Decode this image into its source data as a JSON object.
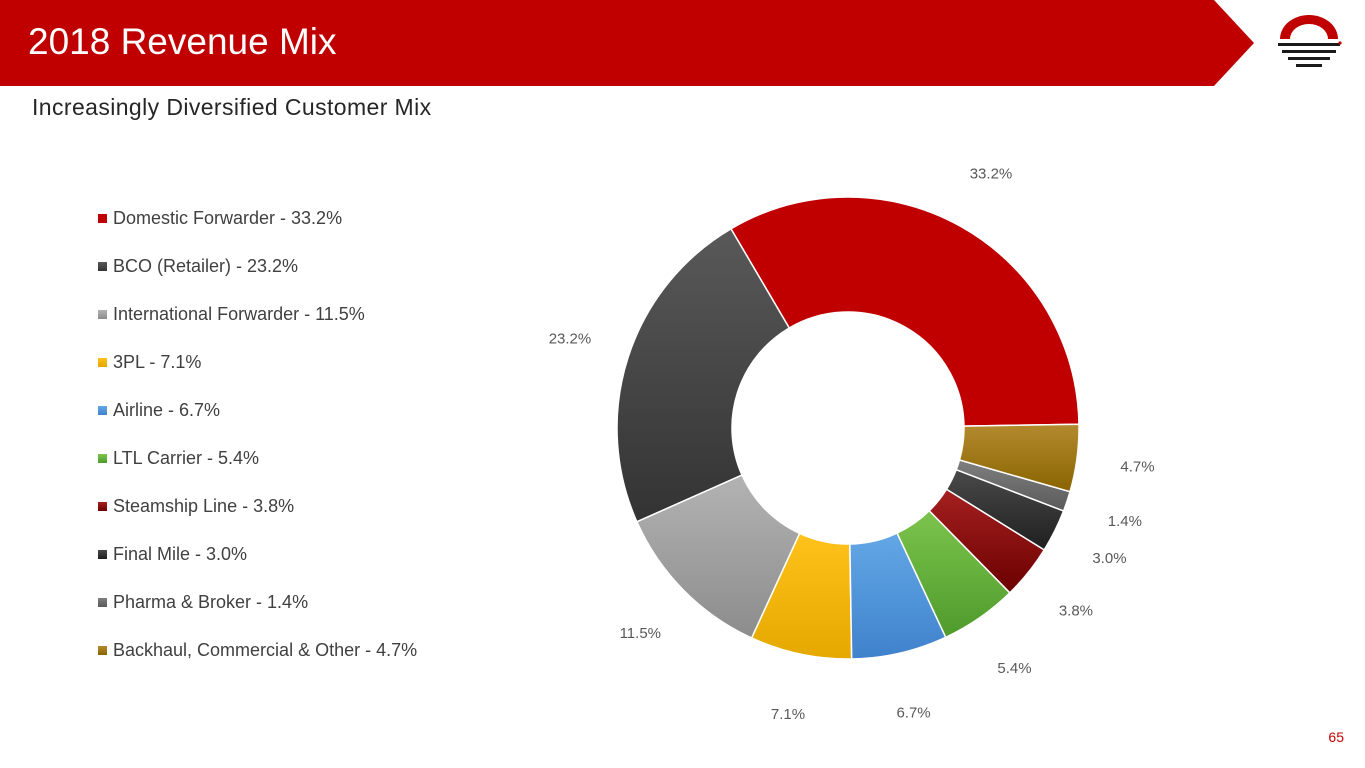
{
  "header": {
    "title": "2018 Revenue Mix",
    "subtitle": "Increasingly Diversified Customer Mix",
    "brand_color": "#c00000",
    "logo_icon": "horizon-sun-logo-icon"
  },
  "footer": {
    "page_number": "65"
  },
  "chart_data": {
    "type": "pie",
    "donut": true,
    "title": "",
    "legend_position": "left",
    "slices": [
      {
        "label": "Domestic Forwarder - 33.2%",
        "value": 33.2,
        "data_label": "33.2%",
        "color": "#c00000",
        "color_dark": "#c00000"
      },
      {
        "label": "BCO (Retailer) - 23.2%",
        "value": 23.2,
        "data_label": "23.2%",
        "color": "#595959",
        "color_dark": "#333333"
      },
      {
        "label": "International Forwarder - 11.5%",
        "value": 11.5,
        "data_label": "11.5%",
        "color": "#b3b3b3",
        "color_dark": "#8c8c8c"
      },
      {
        "label": "3PL - 7.1%",
        "value": 7.1,
        "data_label": "7.1%",
        "color": "#ffc21a",
        "color_dark": "#e5a800"
      },
      {
        "label": "Airline - 6.7%",
        "value": 6.7,
        "data_label": "6.7%",
        "color": "#63a7e6",
        "color_dark": "#3f82cc"
      },
      {
        "label": "LTL Carrier - 5.4%",
        "value": 5.4,
        "data_label": "5.4%",
        "color": "#7cc44d",
        "color_dark": "#4e9a2b"
      },
      {
        "label": "Steamship Line - 3.8%",
        "value": 3.8,
        "data_label": "3.8%",
        "color": "#a52020",
        "color_dark": "#6b0000"
      },
      {
        "label": "Final Mile - 3.0%",
        "value": 3.0,
        "data_label": "3.0%",
        "color": "#4a4a4a",
        "color_dark": "#1f1f1f"
      },
      {
        "label": "Pharma & Broker - 1.4%",
        "value": 1.4,
        "data_label": "1.4%",
        "color": "#7f7f7f",
        "color_dark": "#5a5a5a"
      },
      {
        "label": "Backhaul, Commercial & Other - 4.7%",
        "value": 4.7,
        "data_label": "4.7%",
        "color": "#b38a2e",
        "color_dark": "#8a6400"
      }
    ]
  }
}
